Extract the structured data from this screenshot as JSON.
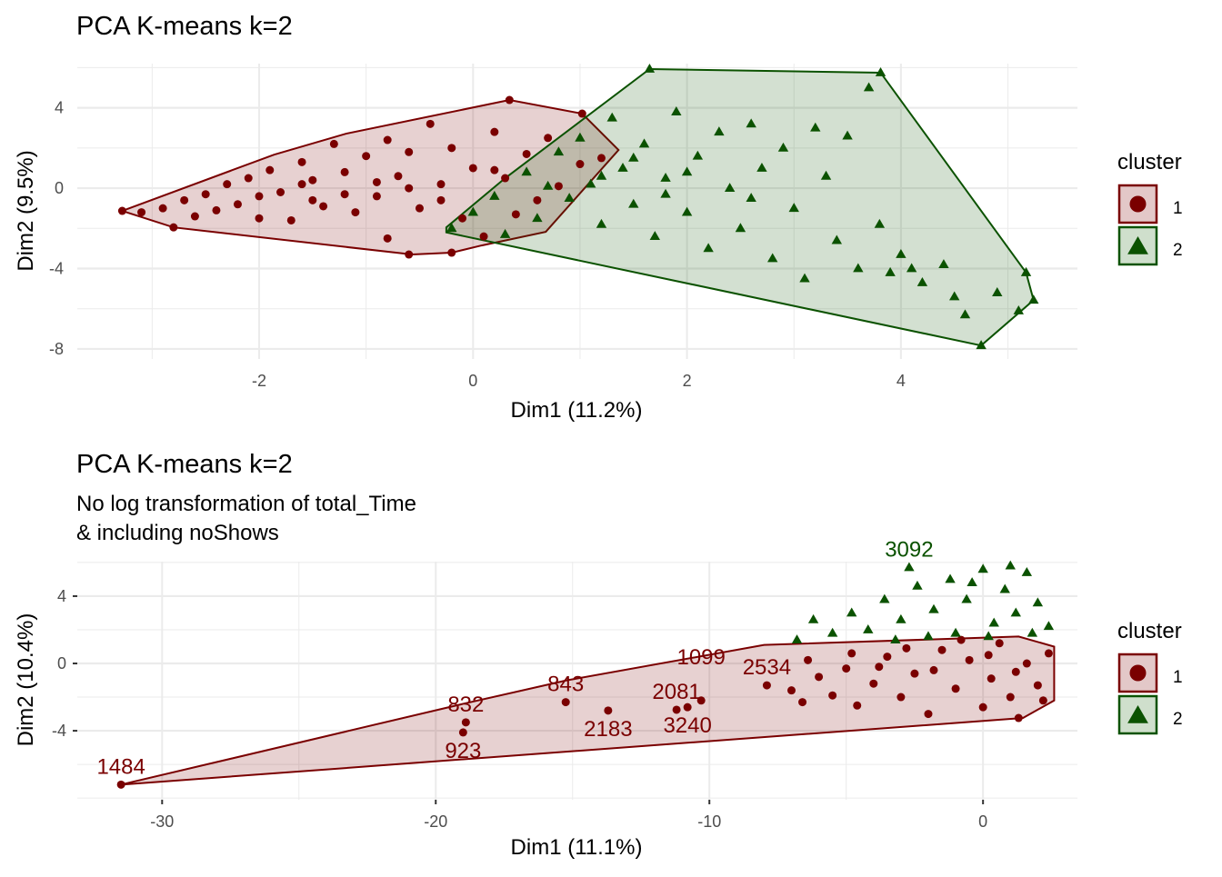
{
  "colors": {
    "cluster1": "#7a0000",
    "cluster2": "#0b5200",
    "fill1": "#e3c8c8",
    "fill2": "#cfdfcc",
    "grid": "#ebebeb"
  },
  "chart_data": [
    {
      "type": "scatter",
      "title": "PCA K-means k=2",
      "subtitle": "",
      "xlabel": "Dim1 (11.2%)",
      "ylabel": "Dim2 (9.5%)",
      "xlim": [
        -3.7,
        5.65
      ],
      "ylim": [
        -8.5,
        6.2
      ],
      "xticks": [
        -2,
        0,
        2,
        4
      ],
      "yticks": [
        4,
        0,
        -4,
        -8
      ],
      "grid": true,
      "legend": {
        "title": "cluster",
        "placement": "right",
        "entries": [
          "1",
          "2"
        ]
      },
      "series": [
        {
          "name": "1",
          "marker": "circle",
          "hull": [
            [
              -3.28,
              -1.13
            ],
            [
              -2.8,
              -1.95
            ],
            [
              -0.57,
              -3.3
            ],
            [
              -0.2,
              -3.21
            ],
            [
              0.08,
              -2.85
            ],
            [
              0.68,
              -2.17
            ],
            [
              1.36,
              1.9
            ],
            [
              1.02,
              3.71
            ],
            [
              0.34,
              4.39
            ],
            [
              -1.19,
              2.71
            ],
            [
              -1.86,
              1.67
            ]
          ],
          "points": [
            [
              -3.28,
              -1.13
            ],
            [
              -3.1,
              -1.2
            ],
            [
              -2.9,
              -1.0
            ],
            [
              -2.8,
              -1.95
            ],
            [
              -2.7,
              -0.6
            ],
            [
              -2.6,
              -1.4
            ],
            [
              -2.5,
              -0.3
            ],
            [
              -2.4,
              -1.1
            ],
            [
              -2.3,
              0.2
            ],
            [
              -2.2,
              -0.8
            ],
            [
              -2.1,
              0.5
            ],
            [
              -2.0,
              -1.5
            ],
            [
              -1.9,
              0.9
            ],
            [
              -1.8,
              -0.2
            ],
            [
              -1.7,
              -1.6
            ],
            [
              -1.6,
              1.3
            ],
            [
              -1.5,
              0.4
            ],
            [
              -1.4,
              -0.9
            ],
            [
              -1.3,
              2.2
            ],
            [
              -1.2,
              0.8
            ],
            [
              -1.1,
              -1.2
            ],
            [
              -1.0,
              1.6
            ],
            [
              -0.9,
              -0.4
            ],
            [
              -0.8,
              2.4
            ],
            [
              -0.8,
              -2.5
            ],
            [
              -0.7,
              0.6
            ],
            [
              -0.6,
              -3.3
            ],
            [
              -0.6,
              1.8
            ],
            [
              -0.5,
              -1.0
            ],
            [
              -0.4,
              3.2
            ],
            [
              -0.3,
              0.2
            ],
            [
              -0.2,
              -3.21
            ],
            [
              -0.2,
              2.0
            ],
            [
              -0.1,
              -1.5
            ],
            [
              0.0,
              1.0
            ],
            [
              0.1,
              -2.4
            ],
            [
              0.2,
              2.8
            ],
            [
              0.34,
              4.39
            ],
            [
              0.3,
              0.5
            ],
            [
              0.4,
              -1.3
            ],
            [
              0.5,
              1.7
            ],
            [
              0.6,
              -0.6
            ],
            [
              0.7,
              2.5
            ],
            [
              0.8,
              0.1
            ],
            [
              1.02,
              3.71
            ],
            [
              1.0,
              1.2
            ],
            [
              1.2,
              1.5
            ],
            [
              -1.5,
              -0.6
            ],
            [
              -0.9,
              0.3
            ],
            [
              -0.3,
              -0.6
            ],
            [
              -1.2,
              -0.3
            ],
            [
              -0.6,
              0.0
            ],
            [
              0.2,
              0.9
            ],
            [
              -2.0,
              -0.4
            ],
            [
              -1.6,
              0.2
            ]
          ]
        },
        {
          "name": "2",
          "marker": "triangle",
          "hull": [
            [
              -0.25,
              -1.95
            ],
            [
              0.3,
              0.5
            ],
            [
              1.65,
              5.93
            ],
            [
              3.81,
              5.75
            ],
            [
              5.17,
              -4.2
            ],
            [
              5.24,
              -5.57
            ],
            [
              4.75,
              -7.83
            ],
            [
              -0.25,
              -2.2
            ]
          ],
          "points": [
            [
              -0.2,
              -2.0
            ],
            [
              0.0,
              -1.2
            ],
            [
              0.2,
              -0.4
            ],
            [
              0.3,
              -2.3
            ],
            [
              0.5,
              0.8
            ],
            [
              0.6,
              -1.5
            ],
            [
              0.8,
              1.8
            ],
            [
              0.9,
              -0.5
            ],
            [
              1.0,
              2.5
            ],
            [
              1.1,
              0.2
            ],
            [
              1.2,
              -1.8
            ],
            [
              1.3,
              3.5
            ],
            [
              1.4,
              1.0
            ],
            [
              1.5,
              -0.8
            ],
            [
              1.65,
              5.93
            ],
            [
              1.6,
              2.2
            ],
            [
              1.7,
              -2.4
            ],
            [
              1.8,
              0.5
            ],
            [
              1.9,
              3.8
            ],
            [
              2.0,
              -1.2
            ],
            [
              2.1,
              1.6
            ],
            [
              2.2,
              -3.0
            ],
            [
              2.3,
              2.8
            ],
            [
              2.4,
              0.0
            ],
            [
              2.5,
              -2.0
            ],
            [
              2.6,
              3.2
            ],
            [
              2.7,
              1.0
            ],
            [
              2.8,
              -3.5
            ],
            [
              2.9,
              2.0
            ],
            [
              3.0,
              -1.0
            ],
            [
              3.1,
              -4.5
            ],
            [
              3.2,
              3.0
            ],
            [
              3.3,
              0.6
            ],
            [
              3.4,
              -2.6
            ],
            [
              3.5,
              2.6
            ],
            [
              3.6,
              -4.0
            ],
            [
              3.81,
              5.75
            ],
            [
              3.7,
              5.0
            ],
            [
              3.8,
              -1.8
            ],
            [
              3.9,
              -4.2
            ],
            [
              4.0,
              -3.3
            ],
            [
              4.2,
              -4.7
            ],
            [
              4.4,
              -3.8
            ],
            [
              4.5,
              -5.4
            ],
            [
              4.75,
              -7.83
            ],
            [
              4.9,
              -5.2
            ],
            [
              5.1,
              -6.1
            ],
            [
              5.17,
              -4.2
            ],
            [
              5.24,
              -5.57
            ],
            [
              4.6,
              -6.3
            ],
            [
              4.1,
              -4.0
            ],
            [
              1.2,
              0.6
            ],
            [
              1.5,
              1.5
            ],
            [
              2.0,
              0.8
            ],
            [
              0.7,
              0.1
            ],
            [
              2.6,
              -0.5
            ],
            [
              1.8,
              -0.3
            ]
          ]
        }
      ]
    },
    {
      "type": "scatter",
      "title": "PCA K-means k=2",
      "subtitle": "No log transformation of total_Time\n& including noShows",
      "subtitle_lines": [
        "No log transformation of total_Time",
        "& including noShows"
      ],
      "xlabel": "Dim1 (11.1%)",
      "ylabel": "Dim2 (10.4%)",
      "xlim": [
        -33.1,
        3.45
      ],
      "ylim": [
        -8.1,
        6.05
      ],
      "xticks": [
        -30,
        -20,
        -10,
        0
      ],
      "yticks": [
        4,
        0,
        -4
      ],
      "grid": true,
      "legend": {
        "title": "cluster",
        "placement": "right",
        "entries": [
          "1",
          "2"
        ]
      },
      "series": [
        {
          "name": "1",
          "marker": "circle",
          "hull": [
            [
              -31.5,
              -7.2
            ],
            [
              -19.0,
              -2.4
            ],
            [
              -15.2,
              -1.0
            ],
            [
              -8.0,
              1.1
            ],
            [
              1.3,
              1.6
            ],
            [
              2.6,
              1.0
            ],
            [
              2.6,
              -2.2
            ],
            [
              1.46,
              -3.24
            ]
          ],
          "labeled_points": [
            {
              "label": "1484",
              "x": -31.5,
              "y": -7.2
            },
            {
              "label": "832",
              "x": -18.9,
              "y": -3.5
            },
            {
              "label": "923",
              "x": -19.0,
              "y": -4.1
            },
            {
              "label": "843",
              "x": -15.25,
              "y": -2.3
            },
            {
              "label": "2183",
              "x": -13.7,
              "y": -2.8
            },
            {
              "label": "2081",
              "x": -11.2,
              "y": -2.75
            },
            {
              "label": "3240",
              "x": -10.8,
              "y": -2.6
            },
            {
              "label": "1099",
              "x": -10.3,
              "y": -2.2
            },
            {
              "label": "2534",
              "x": -7.9,
              "y": -1.3
            }
          ],
          "points": [
            [
              -7.0,
              -1.6
            ],
            [
              -6.6,
              -2.3
            ],
            [
              -6.0,
              -0.8
            ],
            [
              -5.5,
              -1.9
            ],
            [
              -5.0,
              -0.3
            ],
            [
              -4.6,
              -2.5
            ],
            [
              -4.0,
              -1.2
            ],
            [
              -3.5,
              0.4
            ],
            [
              -3.0,
              -2.0
            ],
            [
              -2.5,
              -0.6
            ],
            [
              -2.0,
              -3.0
            ],
            [
              -1.5,
              0.8
            ],
            [
              -1.0,
              -1.5
            ],
            [
              -0.5,
              0.2
            ],
            [
              0.0,
              -2.6
            ],
            [
              0.3,
              -0.9
            ],
            [
              0.6,
              1.2
            ],
            [
              1.0,
              -2.0
            ],
            [
              1.3,
              -3.24
            ],
            [
              1.6,
              0.0
            ],
            [
              2.0,
              -1.3
            ],
            [
              2.4,
              0.6
            ],
            [
              -3.8,
              -0.2
            ],
            [
              -2.8,
              0.9
            ],
            [
              -1.8,
              -0.4
            ],
            [
              -0.8,
              1.4
            ],
            [
              0.2,
              0.5
            ],
            [
              1.2,
              -0.5
            ],
            [
              2.2,
              -2.2
            ],
            [
              -4.8,
              0.6
            ],
            [
              -6.4,
              0.2
            ]
          ]
        },
        {
          "name": "2",
          "marker": "triangle",
          "labeled_points": [
            {
              "label": "3092",
              "x": -2.7,
              "y": 5.7
            }
          ],
          "points": [
            [
              -6.8,
              1.4
            ],
            [
              -6.2,
              2.6
            ],
            [
              -5.5,
              1.8
            ],
            [
              -4.8,
              3.0
            ],
            [
              -4.2,
              2.0
            ],
            [
              -3.6,
              3.8
            ],
            [
              -3.0,
              2.6
            ],
            [
              -2.4,
              4.6
            ],
            [
              -1.8,
              3.2
            ],
            [
              -1.2,
              5.0
            ],
            [
              -0.6,
              3.8
            ],
            [
              0.0,
              5.6
            ],
            [
              0.4,
              2.4
            ],
            [
              0.8,
              4.4
            ],
            [
              1.2,
              3.0
            ],
            [
              1.6,
              5.4
            ],
            [
              2.0,
              3.6
            ],
            [
              2.4,
              2.2
            ],
            [
              -1.0,
              1.8
            ],
            [
              -2.0,
              1.6
            ],
            [
              0.2,
              1.6
            ],
            [
              1.8,
              1.8
            ],
            [
              -3.2,
              1.4
            ],
            [
              -0.4,
              4.8
            ],
            [
              1.0,
              5.8
            ]
          ]
        }
      ]
    }
  ]
}
